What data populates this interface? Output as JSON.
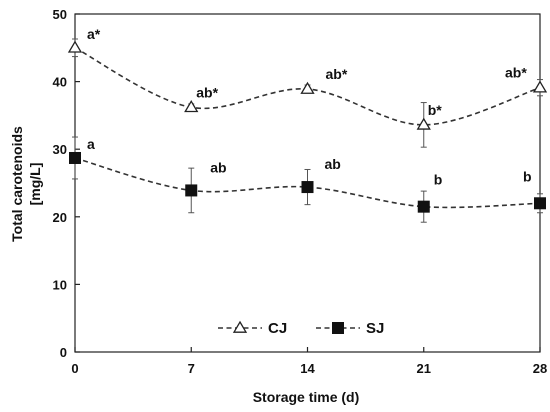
{
  "chart_data": {
    "type": "line",
    "xlabel": "Storage time (d)",
    "ylabel_lines": [
      "Total carotenoids",
      "[mg/L]"
    ],
    "x": [
      0,
      7,
      14,
      21,
      28
    ],
    "x_ticks": [
      "0",
      "7",
      "14",
      "21",
      "28"
    ],
    "y_ticks": [
      "0",
      "10",
      "20",
      "30",
      "40",
      "50"
    ],
    "xlim": [
      0,
      28
    ],
    "ylim": [
      0,
      50
    ],
    "grid": false,
    "legend_position": "bottom-center",
    "series": [
      {
        "name": "CJ",
        "marker": "open-triangle",
        "values": [
          45.0,
          36.2,
          38.9,
          33.6,
          39.1
        ],
        "errors": [
          1.3,
          0.5,
          0.6,
          3.3,
          1.2
        ],
        "labels": [
          "a*",
          "ab*",
          "ab*",
          "b*",
          "ab*"
        ]
      },
      {
        "name": "SJ",
        "marker": "filled-square",
        "values": [
          28.7,
          23.9,
          24.4,
          21.5,
          22.0
        ],
        "errors": [
          3.1,
          3.3,
          2.6,
          2.3,
          1.4
        ],
        "labels": [
          "a",
          "ab",
          "ab",
          "b",
          "b"
        ]
      }
    ],
    "colors": {
      "line": "#333333",
      "marker_fill": "#111111",
      "open_fill": "#ffffff"
    }
  }
}
